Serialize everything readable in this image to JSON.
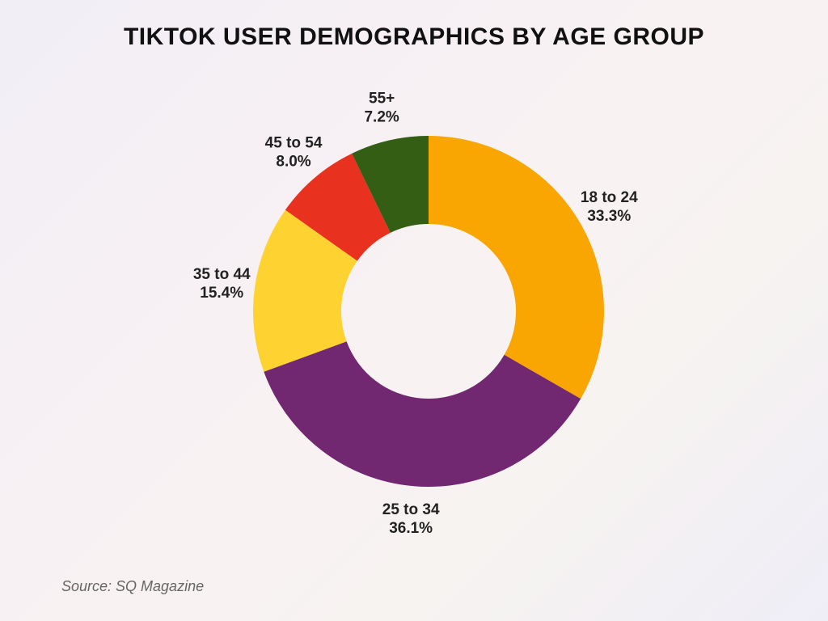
{
  "chart_data": {
    "type": "donut",
    "title": "TIKTOK USER DEMOGRAPHICS BY AGE GROUP",
    "categories": [
      "18 to 24",
      "25 to 34",
      "35 to 44",
      "45 to 54",
      "55+"
    ],
    "values": [
      33.3,
      36.1,
      15.4,
      8.0,
      7.2
    ],
    "value_labels": [
      "33.3%",
      "36.1%",
      "15.4%",
      "8.0%",
      "7.2%"
    ],
    "colors": [
      "#f9a602",
      "#722870",
      "#fdd231",
      "#e8321f",
      "#335e14"
    ],
    "source": "Source: SQ Magazine"
  }
}
